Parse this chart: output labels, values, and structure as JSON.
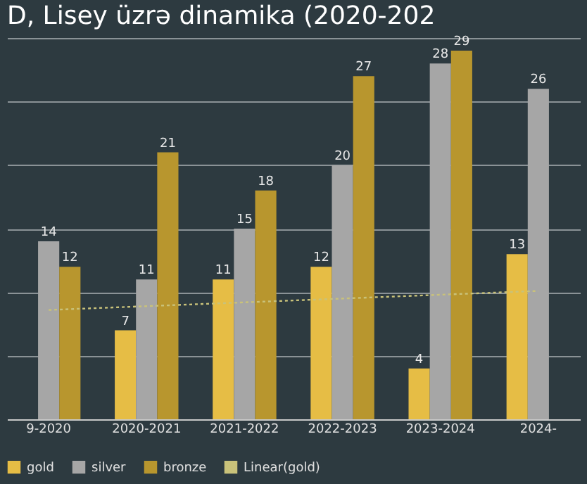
{
  "chart_data": {
    "type": "bar",
    "title": "D, Lisey üzrə dinamika (2020-202",
    "categories": [
      "9-2020",
      "2020-2021",
      "2021-2022",
      "2022-2023",
      "2023-2024",
      "2024-"
    ],
    "series": [
      {
        "name": "gold",
        "color": "#e6bd45",
        "values": [
          null,
          7,
          11,
          12,
          4,
          13
        ],
        "value_labels": [
          null,
          "7",
          "11",
          "12",
          "4",
          "13"
        ]
      },
      {
        "name": "silver",
        "color": "#a6a6a6",
        "values": [
          14,
          11,
          15,
          20,
          28,
          26
        ],
        "value_labels": [
          "14",
          "11",
          "15",
          "20",
          "28",
          "26"
        ]
      },
      {
        "name": "bronze",
        "color": "#b8962e",
        "values": [
          12,
          21,
          18,
          27,
          29,
          null
        ],
        "value_labels": [
          "12",
          "21",
          "18",
          "27",
          "29",
          null
        ]
      },
      {
        "name": "Linear(gold)",
        "type": "line",
        "line_style": "dotted",
        "color": "#c9c27a",
        "values": [
          8.6,
          8.9,
          9.2,
          9.5,
          9.8,
          10.1
        ]
      }
    ],
    "tick_labels": "x",
    "grid": "y",
    "legend": "bottom"
  }
}
